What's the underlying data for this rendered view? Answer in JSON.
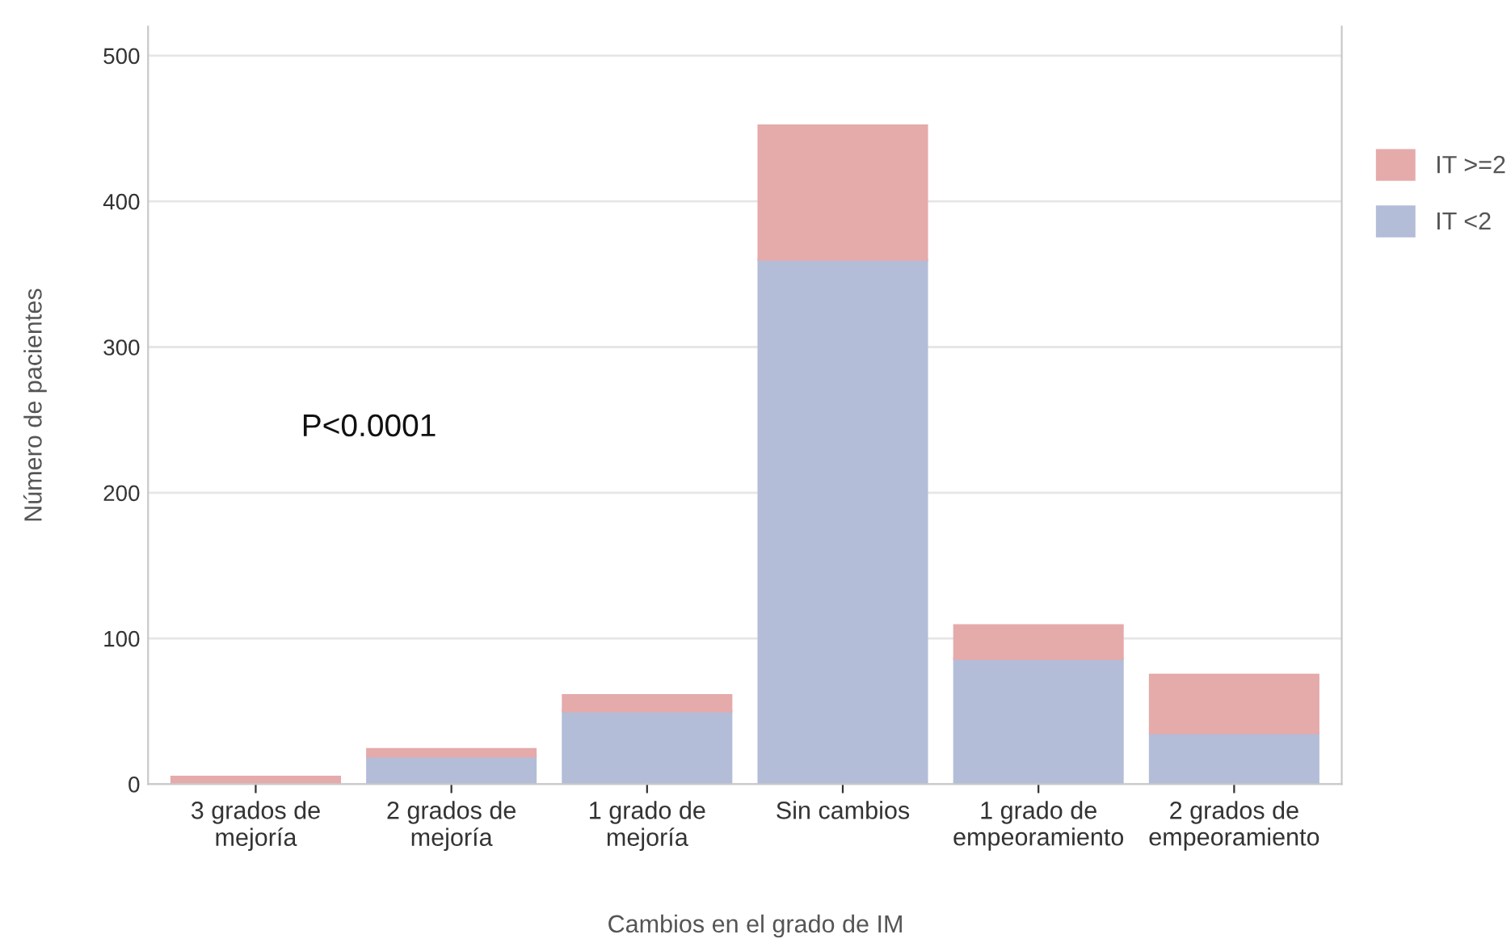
{
  "chart_data": {
    "type": "bar",
    "stacked": true,
    "xlabel": "Cambios en el grado de IM",
    "ylabel": "Número de pacientes",
    "categories": [
      "3 grados de\nmejoría",
      "2 grados de\nmejoría",
      "1 grado de\nmejoría",
      "Sin cambios",
      "1 grado de\nempeoramiento",
      "2 grados de\nempeoramiento"
    ],
    "series": [
      {
        "name": "IT <2",
        "color": "#b3bdd8",
        "values": [
          0,
          19,
          50,
          360,
          86,
          35
        ]
      },
      {
        "name": "IT >=2",
        "color": "#e5aaaa",
        "values": [
          5,
          5,
          11,
          92,
          23,
          40
        ]
      }
    ],
    "ylim": [
      0,
      520
    ],
    "yticks": [
      0,
      100,
      200,
      300,
      400,
      500
    ],
    "grid": "y",
    "legend": "right",
    "annotations": [
      "P<0.0001"
    ]
  }
}
